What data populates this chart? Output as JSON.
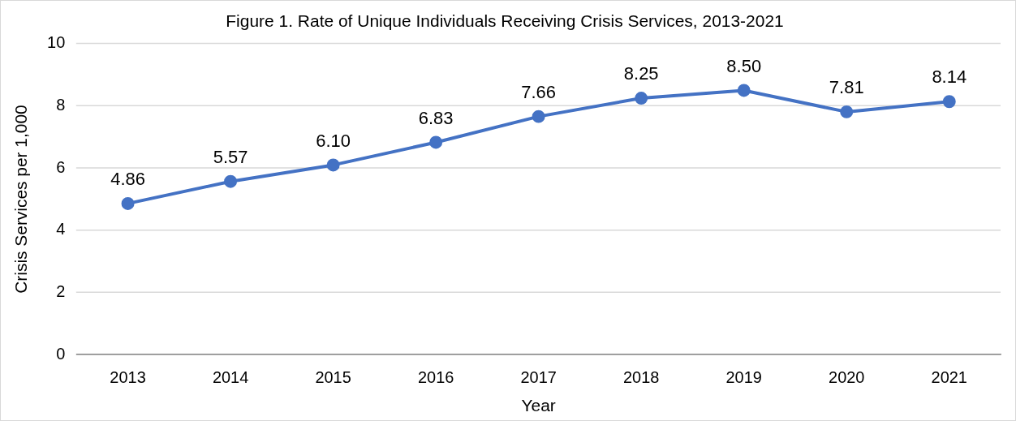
{
  "chart_data": {
    "type": "line",
    "title": "Figure 1. Rate of Unique Individuals Receiving Crisis Services, 2013-2021",
    "xlabel": "Year",
    "ylabel": "Crisis Services per 1,000",
    "categories": [
      "2013",
      "2014",
      "2015",
      "2016",
      "2017",
      "2018",
      "2019",
      "2020",
      "2021"
    ],
    "series": [
      {
        "color": "#4472c4",
        "values": [
          4.86,
          5.57,
          6.1,
          6.83,
          7.66,
          8.25,
          8.5,
          7.81,
          8.14
        ],
        "value_labels": [
          "4.86",
          "5.57",
          "6.10",
          "6.83",
          "7.66",
          "8.25",
          "8.50",
          "7.81",
          "8.14"
        ]
      }
    ],
    "ylim": [
      0,
      10
    ],
    "yticks": [
      0,
      2,
      4,
      6,
      8,
      10
    ],
    "grid": "y",
    "legend": false,
    "marker": "circle",
    "line_style": "solid"
  }
}
